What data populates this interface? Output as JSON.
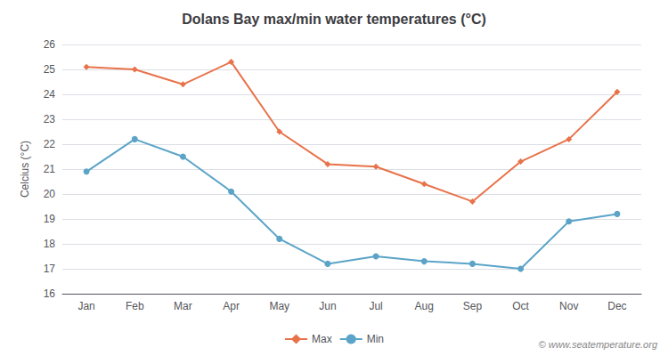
{
  "chart_data": {
    "type": "line",
    "title": "Dolans Bay max/min water temperatures (°C)",
    "ylabel": "Celcius (°C)",
    "categories": [
      "Jan",
      "Feb",
      "Mar",
      "Apr",
      "May",
      "Jun",
      "Jul",
      "Aug",
      "Sep",
      "Oct",
      "Nov",
      "Dec"
    ],
    "series": [
      {
        "name": "Max",
        "color": "#e8724a",
        "marker": "diamond",
        "values": [
          25.1,
          25.0,
          24.4,
          25.3,
          22.5,
          21.2,
          21.1,
          20.4,
          19.7,
          21.3,
          22.2,
          24.1
        ]
      },
      {
        "name": "Min",
        "color": "#5ba4c8",
        "marker": "circle",
        "values": [
          20.9,
          22.2,
          21.5,
          20.1,
          18.2,
          17.2,
          17.5,
          17.3,
          17.2,
          17.0,
          18.9,
          19.2
        ]
      }
    ],
    "ylim": [
      16,
      26
    ],
    "yticks": [
      16,
      17,
      18,
      19,
      20,
      21,
      22,
      23,
      24,
      25,
      26
    ],
    "grid": true,
    "legend": "bottom",
    "annotations": [
      "© www.seatemperature.org"
    ]
  }
}
